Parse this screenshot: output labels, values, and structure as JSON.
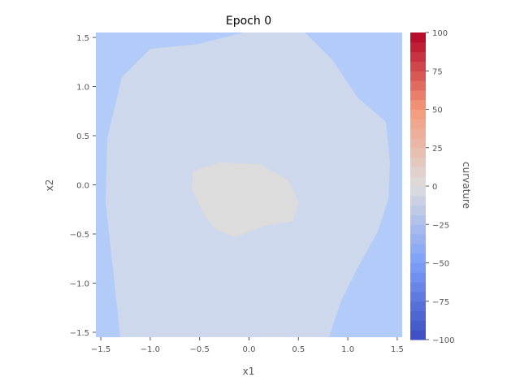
{
  "chart_data": {
    "type": "heatmap",
    "title": "Epoch 0",
    "xlabel": "x1",
    "ylabel": "x2",
    "xlim": [
      -1.55,
      1.55
    ],
    "ylim": [
      -1.55,
      1.55
    ],
    "x_ticks": [
      "−1.5",
      "−1.0",
      "−0.5",
      "0.0",
      "0.5",
      "1.0",
      "1.5"
    ],
    "x_tick_values": [
      -1.5,
      -1.0,
      -0.5,
      0.0,
      0.5,
      1.0,
      1.5
    ],
    "y_ticks": [
      "−1.5",
      "−1.0",
      "−0.5",
      "0.0",
      "0.5",
      "1.0",
      "1.5"
    ],
    "y_tick_values": [
      -1.5,
      -1.0,
      -0.5,
      0.0,
      0.5,
      1.0,
      1.5
    ],
    "colorbar": {
      "label": "curvature",
      "vmin": -100,
      "vmax": 100,
      "levels": 32,
      "colormap": "coolwarm",
      "ticks": [
        "−100",
        "−75",
        "−50",
        "−25",
        "0",
        "25",
        "50",
        "75",
        "100"
      ],
      "tick_values": [
        -100,
        -75,
        -50,
        -25,
        0,
        25,
        50,
        75,
        100
      ]
    },
    "regions": [
      {
        "name": "outer",
        "value": -30,
        "color": "#b2cbf9"
      },
      {
        "name": "middle",
        "value": -20,
        "color": "#cdd8ec"
      },
      {
        "name": "inner",
        "value": -5,
        "color": "#dcdcdc"
      }
    ],
    "grid": true,
    "background": "#ebebeb"
  }
}
